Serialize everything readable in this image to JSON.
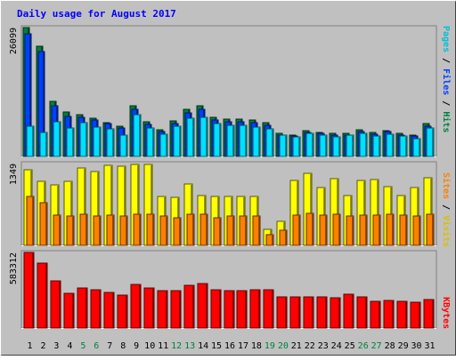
{
  "chart_data": {
    "type": "bar",
    "title": "Daily usage for August 2017",
    "categories": [
      "1",
      "2",
      "3",
      "4",
      "5",
      "6",
      "7",
      "8",
      "9",
      "10",
      "11",
      "12",
      "13",
      "14",
      "15",
      "16",
      "17",
      "18",
      "19",
      "20",
      "21",
      "22",
      "23",
      "24",
      "25",
      "26",
      "27",
      "28",
      "29",
      "30",
      "31"
    ],
    "weekend_days": [
      "5",
      "6",
      "12",
      "13",
      "19",
      "20",
      "26",
      "27"
    ],
    "panels": [
      {
        "name": "Pages / Files / Hits",
        "ymax_label": "26099",
        "ymax": 26099,
        "series": [
          {
            "name": "Hits",
            "color": "#008040",
            "values": [
              26099,
              22300,
              11100,
              9000,
              8500,
              7700,
              6900,
              6200,
              10300,
              7000,
              5400,
              7200,
              9600,
              10300,
              7900,
              7500,
              7500,
              7400,
              6800,
              4600,
              4400,
              5200,
              4900,
              4600,
              4700,
              5400,
              4800,
              5300,
              4700,
              4400,
              6700
            ]
          },
          {
            "name": "Files",
            "color": "#0040ff",
            "values": [
              24800,
              21300,
              10300,
              8100,
              8000,
              7300,
              6600,
              5700,
              9500,
              6500,
              5000,
              6700,
              8900,
              9600,
              7400,
              7000,
              7000,
              6900,
              6300,
              4300,
              4100,
              4900,
              4600,
              4300,
              4400,
              5100,
              4500,
              5000,
              4400,
              4100,
              6200
            ]
          },
          {
            "name": "Pages",
            "color": "#00e0ff",
            "values": [
              6200,
              4900,
              7100,
              5700,
              6900,
              5900,
              5500,
              4400,
              8400,
              5800,
              4500,
              6200,
              7800,
              7900,
              6600,
              6300,
              6300,
              6000,
              5600,
              4400,
              4000,
              4600,
              4400,
              4000,
              4300,
              4700,
              4200,
              4500,
              4100,
              3600,
              5700
            ]
          }
        ]
      },
      {
        "name": "Sites / Visits",
        "ymax_label": "1349",
        "ymax": 1349,
        "series": [
          {
            "name": "Visits",
            "color": "#ffff00",
            "values": [
              1240,
              1050,
              1000,
              1050,
              1280,
              1220,
              1320,
              1300,
              1340,
              1340,
              810,
              790,
              1010,
              820,
              810,
              810,
              810,
              800,
              270,
              400,
              1070,
              1190,
              960,
              1100,
              820,
              1070,
              1080,
              970,
              820,
              950,
              1120
            ]
          },
          {
            "name": "Sites",
            "color": "#ff8000",
            "values": [
              800,
              710,
              500,
              490,
              510,
              490,
              500,
              490,
              520,
              510,
              480,
              460,
              510,
              520,
              460,
              490,
              490,
              490,
              170,
              250,
              500,
              530,
              500,
              510,
              480,
              500,
              500,
              510,
              500,
              490,
              520
            ]
          }
        ]
      },
      {
        "name": "KBytes",
        "ymax_label": "583312",
        "ymax": 583312,
        "series": [
          {
            "name": "KBytes",
            "color": "#ff0000",
            "values": [
              583312,
              500000,
              363000,
              265000,
              312000,
              298000,
              272000,
              257000,
              334000,
              310000,
              287000,
              288000,
              329000,
              344000,
              297000,
              289000,
              287000,
              295000,
              294000,
              239000,
              240000,
              243000,
              240000,
              236000,
              262000,
              240000,
              203000,
              212000,
              206000,
              200000,
              217000
            ]
          }
        ]
      }
    ],
    "side_labels": [
      {
        "parts": [
          {
            "text": "Pages",
            "color": "#00c0d8"
          },
          {
            "text": " / ",
            "color": "#000000"
          },
          {
            "text": "Files",
            "color": "#0040ff"
          },
          {
            "text": " / ",
            "color": "#000000"
          },
          {
            "text": "Hits",
            "color": "#008040"
          }
        ]
      },
      {
        "parts": [
          {
            "text": "Sites",
            "color": "#ff8000"
          },
          {
            "text": " / ",
            "color": "#000000"
          },
          {
            "text": "Visits",
            "color": "#d8c000"
          }
        ]
      },
      {
        "parts": [
          {
            "text": "KBytes",
            "color": "#ff0000"
          }
        ]
      }
    ],
    "colors": {
      "background": "#c0c0c0",
      "title": "#0000ff",
      "weekday_label": "#000000",
      "weekend_label": "#008040"
    },
    "grid": false,
    "legend": "right-vertical"
  }
}
